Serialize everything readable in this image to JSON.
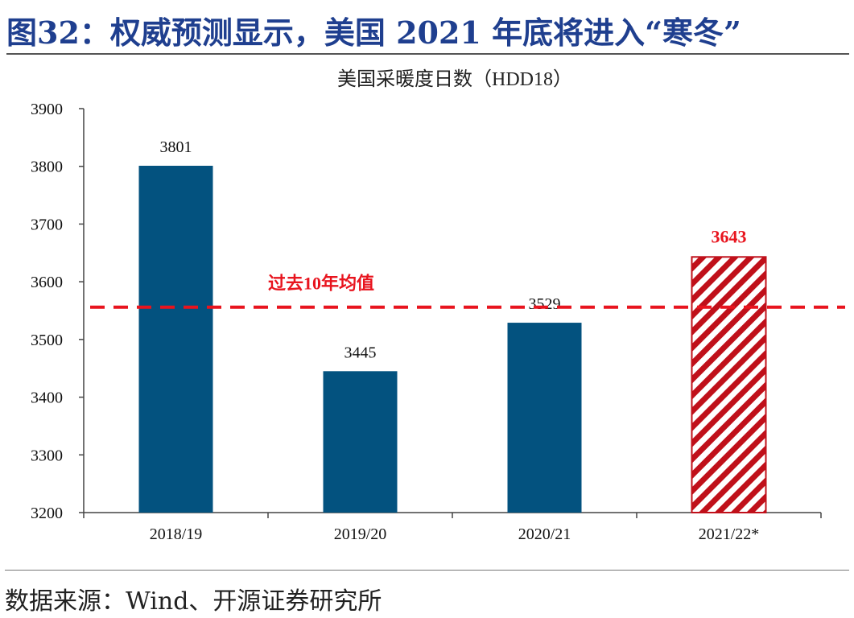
{
  "figure": {
    "title": "图32：权威预测显示，美国 2021 年底将进入“寒冬”",
    "source": "数据来源：Wind、开源证券研究所"
  },
  "chart_data": {
    "type": "bar",
    "title": "美国采暖度日数（HDD18）",
    "categories": [
      "2018/19",
      "2019/20",
      "2020/21",
      "2021/22*"
    ],
    "values": [
      3801,
      3445,
      3529,
      3643
    ],
    "value_labels": [
      "3801",
      "3445",
      "3529",
      "3643"
    ],
    "forecast_index": 3,
    "ylim": [
      3200,
      3900
    ],
    "yticks": [
      3200,
      3300,
      3400,
      3500,
      3600,
      3700,
      3800,
      3900
    ],
    "ytick_labels": [
      "3200",
      "3300",
      "3400",
      "3500",
      "3600",
      "3700",
      "3800",
      "3900"
    ],
    "reference_line": {
      "label": "过去10年均值",
      "value": 3556
    },
    "grid": false,
    "colors": {
      "bar": "#03527f",
      "forecast": "#c0101a",
      "reference": "#e8141e",
      "title": "#1f3f8f"
    }
  }
}
